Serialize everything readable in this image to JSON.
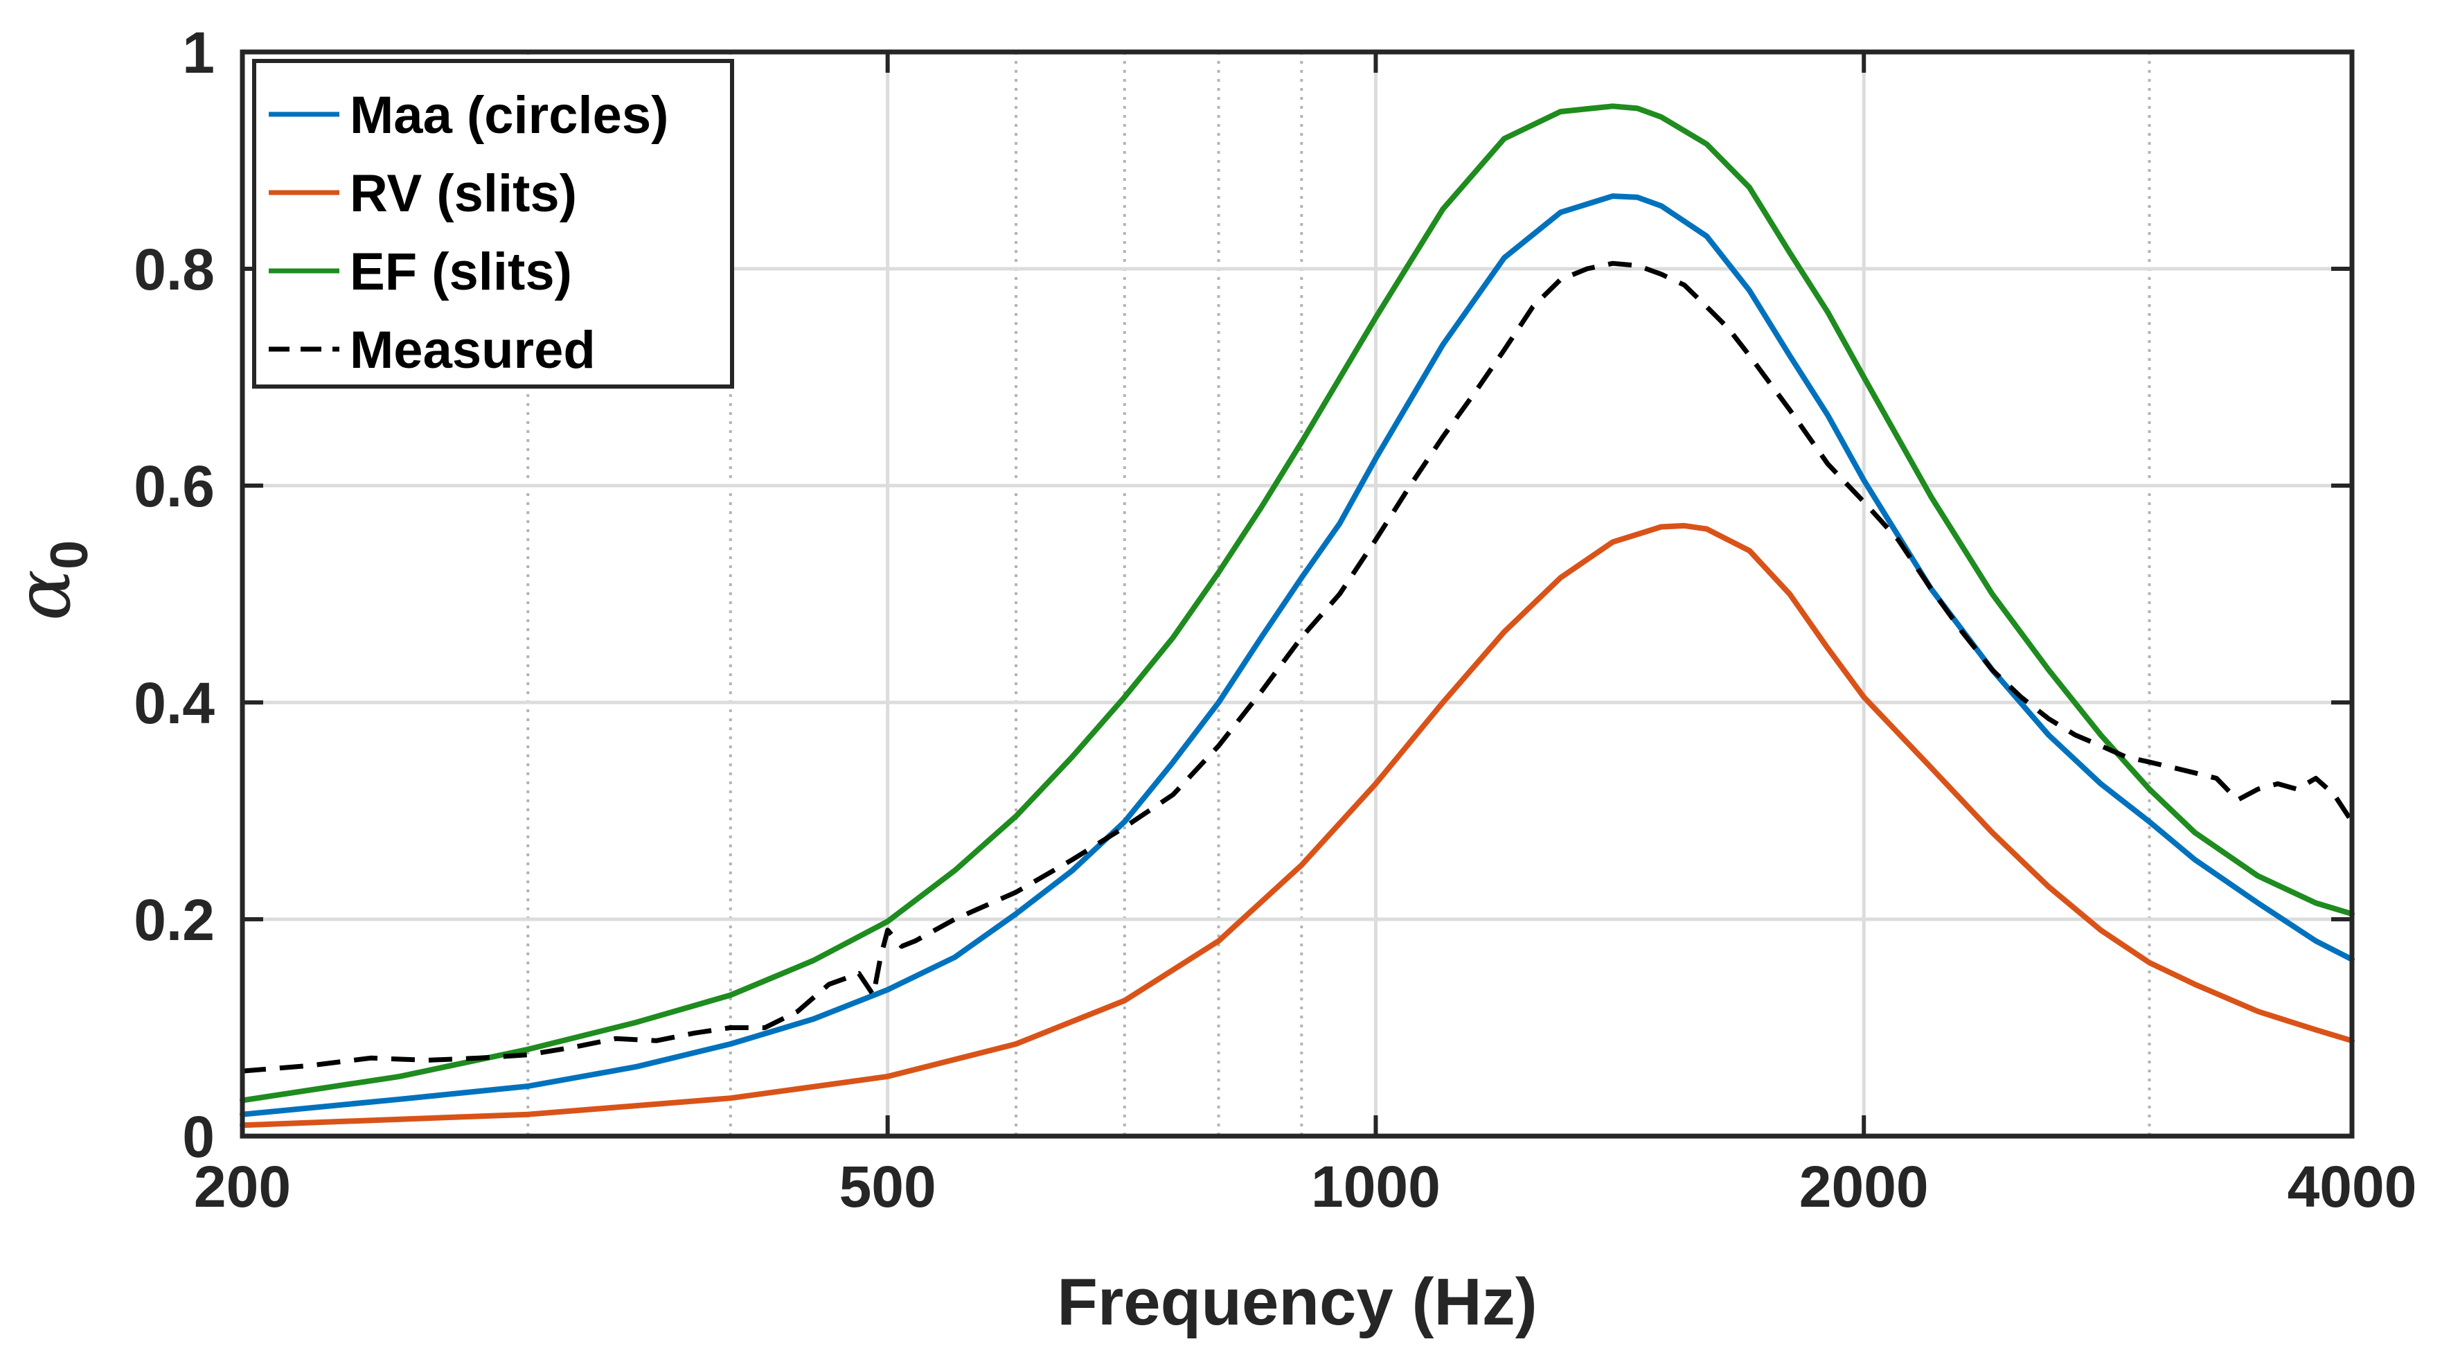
{
  "chart_data": {
    "type": "line",
    "title": "",
    "xlabel": "Frequency (Hz)",
    "ylabel": {
      "symbol": "α",
      "subscript": "0"
    },
    "xscale": "log",
    "xlim": [
      200,
      4000
    ],
    "ylim": [
      0,
      1
    ],
    "xticks": [
      {
        "value": 200,
        "label": "200"
      },
      {
        "value": 500,
        "label": "500"
      },
      {
        "value": 1000,
        "label": "1000"
      },
      {
        "value": 2000,
        "label": "2000"
      },
      {
        "value": 4000,
        "label": "4000"
      }
    ],
    "yticks": [
      {
        "value": 0,
        "label": "0"
      },
      {
        "value": 0.2,
        "label": "0.2"
      },
      {
        "value": 0.4,
        "label": "0.4"
      },
      {
        "value": 0.6,
        "label": "0.6"
      },
      {
        "value": 0.8,
        "label": "0.8"
      },
      {
        "value": 1,
        "label": "1"
      }
    ],
    "minor_x_gridlines": [
      300,
      400,
      600,
      700,
      800,
      900,
      3000
    ],
    "grid": true,
    "legend_position": "top-left",
    "series": [
      {
        "name": "Maa (circles)",
        "color": "#0072BD",
        "style": "solid",
        "x": [
          200,
          250,
          300,
          350,
          400,
          450,
          500,
          550,
          600,
          650,
          700,
          750,
          800,
          850,
          900,
          950,
          1000,
          1100,
          1200,
          1300,
          1400,
          1450,
          1500,
          1600,
          1700,
          1800,
          1900,
          2000,
          2200,
          2400,
          2600,
          2800,
          3000,
          3200,
          3500,
          3800,
          4000
        ],
        "y": [
          0.02,
          0.034,
          0.046,
          0.064,
          0.085,
          0.108,
          0.135,
          0.165,
          0.205,
          0.245,
          0.29,
          0.345,
          0.4,
          0.46,
          0.515,
          0.565,
          0.625,
          0.73,
          0.81,
          0.852,
          0.867,
          0.866,
          0.858,
          0.83,
          0.78,
          0.72,
          0.665,
          0.605,
          0.505,
          0.43,
          0.37,
          0.325,
          0.29,
          0.255,
          0.215,
          0.18,
          0.163
        ]
      },
      {
        "name": "RV (slits)",
        "color": "#D95319",
        "style": "solid",
        "x": [
          200,
          300,
          400,
          500,
          600,
          700,
          800,
          900,
          1000,
          1100,
          1200,
          1300,
          1400,
          1500,
          1550,
          1600,
          1700,
          1800,
          1900,
          2000,
          2200,
          2400,
          2600,
          2800,
          3000,
          3200,
          3500,
          3800,
          4000
        ],
        "y": [
          0.01,
          0.02,
          0.035,
          0.055,
          0.085,
          0.125,
          0.18,
          0.25,
          0.325,
          0.4,
          0.465,
          0.515,
          0.548,
          0.562,
          0.563,
          0.56,
          0.54,
          0.5,
          0.45,
          0.405,
          0.34,
          0.28,
          0.23,
          0.19,
          0.16,
          0.14,
          0.115,
          0.098,
          0.088
        ]
      },
      {
        "name": "EF (slits)",
        "color": "#1E8C1E",
        "style": "solid",
        "x": [
          200,
          250,
          300,
          350,
          400,
          450,
          500,
          550,
          600,
          650,
          700,
          750,
          800,
          850,
          900,
          1000,
          1100,
          1200,
          1300,
          1400,
          1450,
          1500,
          1600,
          1700,
          1800,
          1900,
          2000,
          2200,
          2400,
          2600,
          2800,
          3000,
          3200,
          3500,
          3800,
          4000
        ],
        "y": [
          0.033,
          0.055,
          0.08,
          0.105,
          0.13,
          0.162,
          0.198,
          0.245,
          0.295,
          0.35,
          0.405,
          0.46,
          0.52,
          0.58,
          0.64,
          0.755,
          0.855,
          0.92,
          0.945,
          0.95,
          0.948,
          0.94,
          0.915,
          0.875,
          0.815,
          0.76,
          0.7,
          0.59,
          0.5,
          0.43,
          0.37,
          0.32,
          0.28,
          0.24,
          0.215,
          0.205
        ]
      },
      {
        "name": "Measured",
        "color": "#000000",
        "style": "dashed",
        "x": [
          200,
          220,
          240,
          260,
          280,
          300,
          320,
          340,
          360,
          380,
          400,
          420,
          440,
          460,
          480,
          490,
          495,
          500,
          510,
          520,
          550,
          600,
          650,
          700,
          750,
          800,
          850,
          900,
          950,
          1000,
          1050,
          1100,
          1150,
          1200,
          1250,
          1300,
          1350,
          1400,
          1450,
          1500,
          1550,
          1600,
          1650,
          1700,
          1800,
          1900,
          2000,
          2100,
          2200,
          2300,
          2400,
          2500,
          2600,
          2700,
          2800,
          2900,
          3000,
          3100,
          3200,
          3300,
          3400,
          3500,
          3600,
          3700,
          3800,
          3900,
          4000
        ],
        "y": [
          0.06,
          0.065,
          0.072,
          0.07,
          0.072,
          0.075,
          0.082,
          0.09,
          0.088,
          0.095,
          0.1,
          0.1,
          0.115,
          0.14,
          0.15,
          0.13,
          0.165,
          0.19,
          0.175,
          0.18,
          0.2,
          0.225,
          0.255,
          0.285,
          0.315,
          0.36,
          0.41,
          0.46,
          0.5,
          0.55,
          0.6,
          0.645,
          0.685,
          0.725,
          0.765,
          0.79,
          0.8,
          0.805,
          0.803,
          0.795,
          0.785,
          0.765,
          0.745,
          0.72,
          0.67,
          0.62,
          0.585,
          0.55,
          0.505,
          0.465,
          0.43,
          0.405,
          0.385,
          0.37,
          0.36,
          0.35,
          0.345,
          0.34,
          0.335,
          0.33,
          0.31,
          0.32,
          0.325,
          0.32,
          0.33,
          0.315,
          0.29
        ]
      }
    ]
  }
}
